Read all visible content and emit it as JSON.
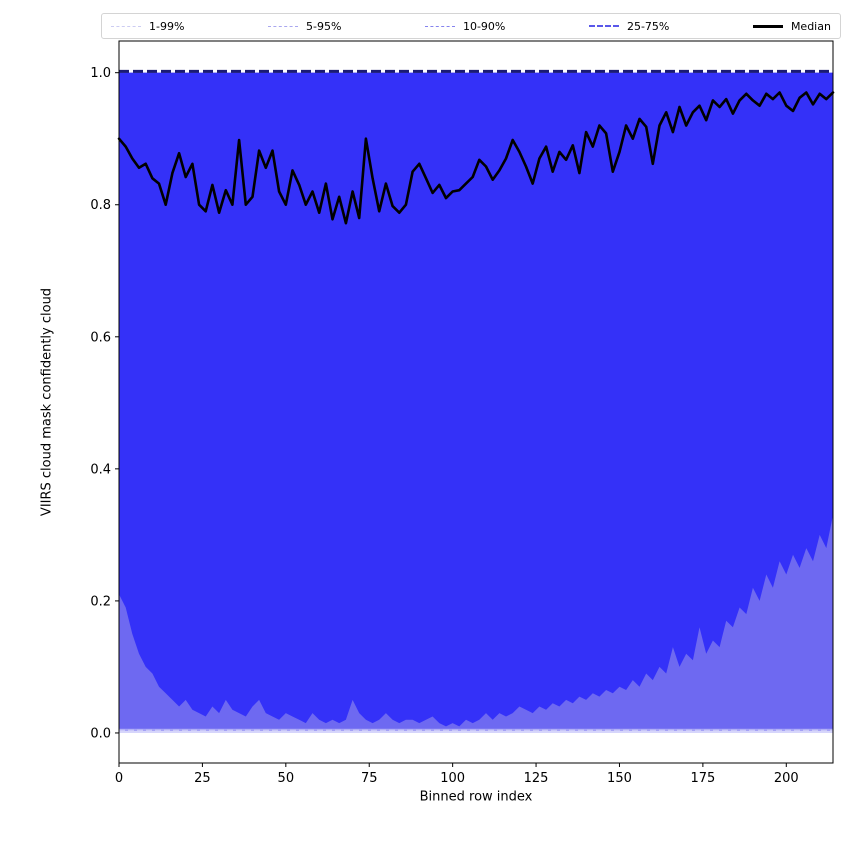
{
  "chart_data": {
    "type": "area",
    "title": "",
    "xlabel": "Binned row index",
    "ylabel": "VIIRS cloud mask confidently cloud",
    "xlim": [
      0,
      214
    ],
    "ylim": [
      -0.0455,
      1.048
    ],
    "grid": false,
    "legend_position": "top-outside",
    "xticks": [
      {
        "v": 0,
        "label": "0"
      },
      {
        "v": 25,
        "label": "25"
      },
      {
        "v": 50,
        "label": "50"
      },
      {
        "v": 75,
        "label": "75"
      },
      {
        "v": 100,
        "label": "100"
      },
      {
        "v": 125,
        "label": "125"
      },
      {
        "v": 150,
        "label": "150"
      },
      {
        "v": 175,
        "label": "175"
      },
      {
        "v": 200,
        "label": "200"
      }
    ],
    "yticks": [
      {
        "v": 0.0,
        "label": "0.0"
      },
      {
        "v": 0.2,
        "label": "0.2"
      },
      {
        "v": 0.4,
        "label": "0.4"
      },
      {
        "v": 0.6,
        "label": "0.6"
      },
      {
        "v": 0.8,
        "label": "0.8"
      },
      {
        "v": 1.0,
        "label": "1.0"
      }
    ],
    "legend": [
      {
        "label": "1-99%",
        "color": "#ccccf2",
        "style": "dashed",
        "width": 1
      },
      {
        "label": "5-95%",
        "color": "#a9a7ef",
        "style": "dashed",
        "width": 1.2
      },
      {
        "label": "10-90%",
        "color": "#8583ee",
        "style": "dashed",
        "width": 1.5
      },
      {
        "label": "25-75%",
        "color": "#5a58ea",
        "style": "dashed",
        "width": 2
      },
      {
        "label": "Median",
        "color": "#000000",
        "style": "solid",
        "width": 3
      }
    ],
    "x": {
      "start": 0,
      "step": 2,
      "count": 108
    },
    "bands": [
      {
        "name": "1-99%",
        "upper_flat": 1.0,
        "lower_flat": 0.0,
        "fill": "#d6d5fb"
      },
      {
        "name": "5-95%",
        "upper_flat": 1.0,
        "lower_flat": 0.003,
        "fill": "#a5a2f6"
      },
      {
        "name": "10-90%",
        "upper_flat": 1.0,
        "lower_flat": 0.0065,
        "fill": "#6e69f1"
      },
      {
        "name": "25-75%",
        "upper_flat": 1.0,
        "fill": "#3431f8",
        "lower": [
          0.21,
          0.19,
          0.15,
          0.12,
          0.1,
          0.09,
          0.07,
          0.06,
          0.05,
          0.04,
          0.05,
          0.035,
          0.03,
          0.025,
          0.04,
          0.03,
          0.05,
          0.035,
          0.03,
          0.025,
          0.04,
          0.05,
          0.03,
          0.025,
          0.02,
          0.03,
          0.025,
          0.02,
          0.015,
          0.03,
          0.02,
          0.015,
          0.02,
          0.015,
          0.02,
          0.05,
          0.03,
          0.02,
          0.015,
          0.02,
          0.03,
          0.02,
          0.015,
          0.02,
          0.02,
          0.015,
          0.02,
          0.025,
          0.015,
          0.01,
          0.015,
          0.01,
          0.02,
          0.015,
          0.02,
          0.03,
          0.02,
          0.03,
          0.025,
          0.03,
          0.04,
          0.035,
          0.03,
          0.04,
          0.035,
          0.045,
          0.04,
          0.05,
          0.045,
          0.055,
          0.05,
          0.06,
          0.055,
          0.065,
          0.06,
          0.07,
          0.065,
          0.08,
          0.07,
          0.09,
          0.08,
          0.1,
          0.09,
          0.13,
          0.1,
          0.12,
          0.11,
          0.16,
          0.12,
          0.14,
          0.13,
          0.17,
          0.16,
          0.19,
          0.18,
          0.22,
          0.2,
          0.24,
          0.22,
          0.26,
          0.24,
          0.27,
          0.25,
          0.28,
          0.26,
          0.3,
          0.28,
          0.33
        ]
      }
    ],
    "median": {
      "color": "#000000",
      "width": 2.6,
      "values": [
        0.9,
        0.888,
        0.87,
        0.856,
        0.862,
        0.84,
        0.832,
        0.8,
        0.848,
        0.878,
        0.842,
        0.862,
        0.8,
        0.79,
        0.83,
        0.788,
        0.822,
        0.8,
        0.898,
        0.8,
        0.812,
        0.882,
        0.856,
        0.882,
        0.82,
        0.8,
        0.852,
        0.83,
        0.8,
        0.82,
        0.788,
        0.832,
        0.778,
        0.812,
        0.772,
        0.82,
        0.78,
        0.9,
        0.84,
        0.79,
        0.832,
        0.798,
        0.788,
        0.8,
        0.85,
        0.862,
        0.84,
        0.818,
        0.83,
        0.81,
        0.82,
        0.822,
        0.832,
        0.842,
        0.868,
        0.858,
        0.838,
        0.852,
        0.87,
        0.898,
        0.88,
        0.858,
        0.832,
        0.87,
        0.888,
        0.85,
        0.88,
        0.868,
        0.89,
        0.848,
        0.91,
        0.888,
        0.92,
        0.908,
        0.85,
        0.88,
        0.92,
        0.9,
        0.93,
        0.918,
        0.862,
        0.92,
        0.94,
        0.91,
        0.948,
        0.92,
        0.94,
        0.95,
        0.928,
        0.958,
        0.948,
        0.96,
        0.938,
        0.958,
        0.968,
        0.958,
        0.95,
        0.968,
        0.96,
        0.97,
        0.95,
        0.942,
        0.962,
        0.97,
        0.952,
        0.968,
        0.96,
        0.97
      ]
    },
    "ref_lines": [
      {
        "y": 1.002,
        "color": "#1b1b72",
        "width": 3,
        "dash": "10,4"
      },
      {
        "y": 0.004,
        "color": "#c9c8f7",
        "width": 1.4,
        "dash": "6,3"
      }
    ]
  }
}
